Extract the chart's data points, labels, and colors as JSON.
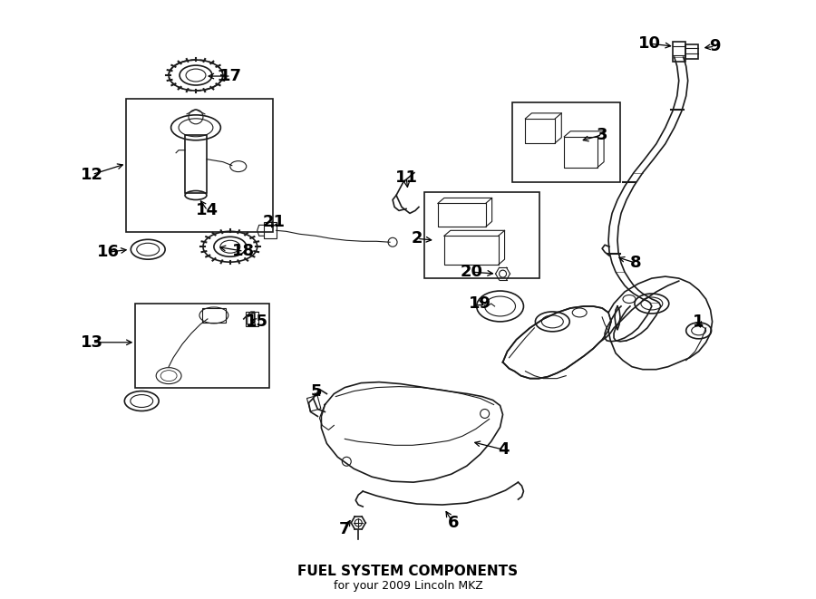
{
  "title": "FUEL SYSTEM COMPONENTS",
  "subtitle": "for your 2009 Lincoln MKZ",
  "bg_color": "#ffffff",
  "line_color": "#1a1a1a",
  "text_color": "#000000",
  "lw_main": 1.2,
  "lw_thin": 0.8,
  "fs_label": 13
}
